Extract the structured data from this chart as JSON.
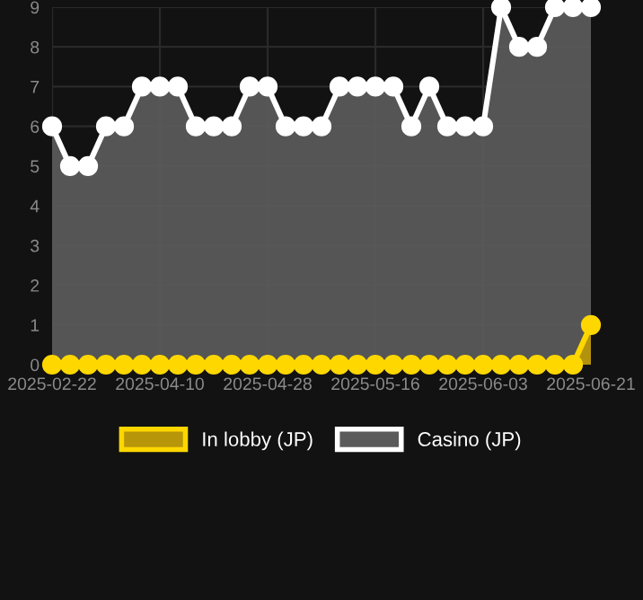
{
  "chart_data": {
    "type": "area",
    "categories": [
      "2025-02-22",
      null,
      null,
      null,
      null,
      null,
      "2025-04-10",
      null,
      null,
      null,
      null,
      null,
      "2025-04-28",
      null,
      null,
      null,
      null,
      null,
      "2025-05-16",
      null,
      null,
      null,
      null,
      null,
      "2025-06-03",
      null,
      null,
      null,
      null,
      null,
      "2025-06-21"
    ],
    "series": [
      {
        "name": "In lobby (JP)",
        "color": "#ffd700",
        "values": [
          0,
          0,
          0,
          0,
          0,
          0,
          0,
          0,
          0,
          0,
          0,
          0,
          0,
          0,
          0,
          0,
          0,
          0,
          0,
          0,
          0,
          0,
          0,
          0,
          0,
          0,
          0,
          0,
          0,
          0,
          1
        ]
      },
      {
        "name": "Casino (JP)",
        "color": "#ffffff",
        "values": [
          6,
          5,
          5,
          6,
          6,
          7,
          7,
          7,
          6,
          6,
          6,
          7,
          7,
          6,
          6,
          6,
          7,
          7,
          7,
          7,
          6,
          7,
          6,
          6,
          6,
          9,
          8,
          8,
          9,
          9,
          9
        ]
      }
    ],
    "ylim": [
      0,
      9
    ],
    "yticks": [
      0,
      1,
      2,
      3,
      4,
      5,
      6,
      7,
      8,
      9
    ],
    "grid": true,
    "legend": "bottom",
    "marker": "circle",
    "line_style": "solid"
  }
}
